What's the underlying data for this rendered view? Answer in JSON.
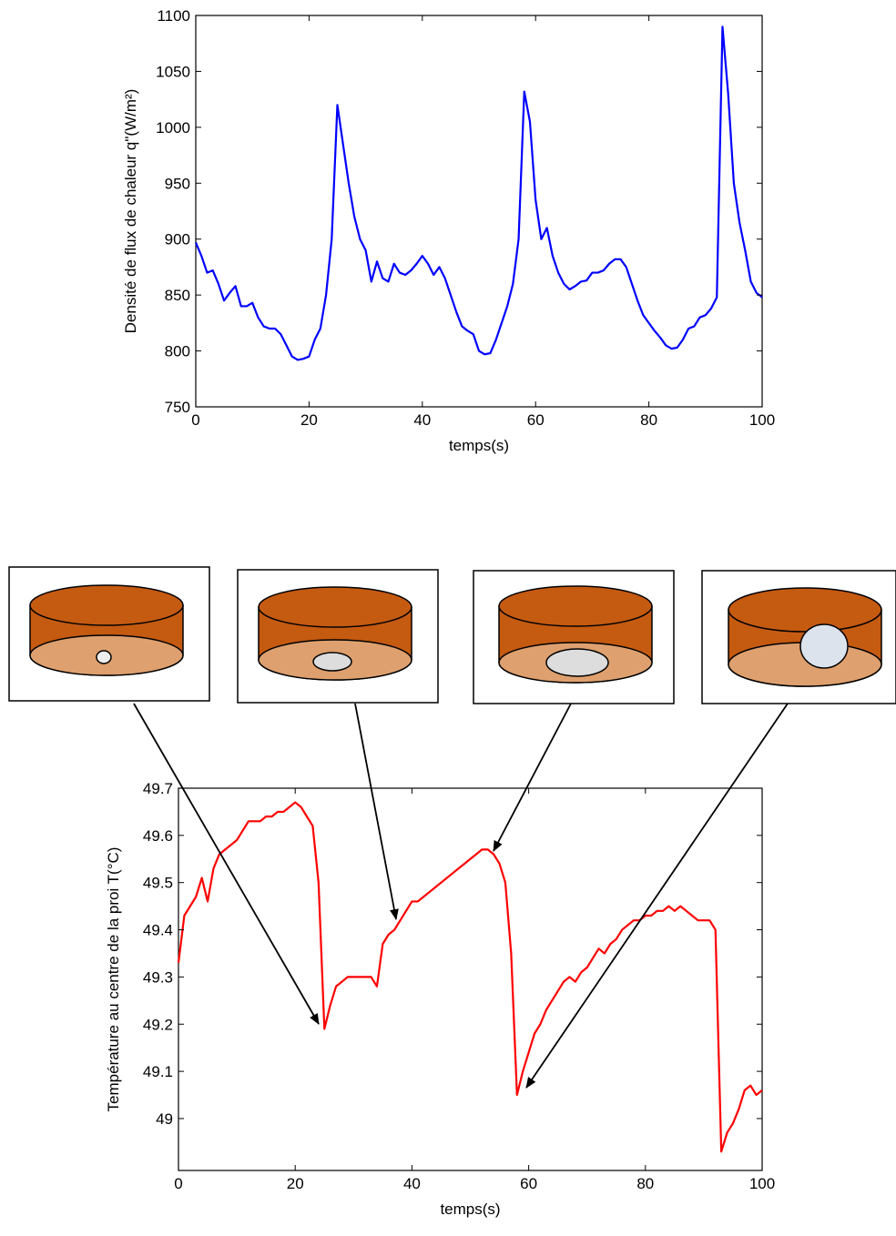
{
  "chart_data": [
    {
      "type": "line",
      "xlabel": "temps(s)",
      "ylabel": "Densité de flux de chaleur q\"(W/m²)",
      "color": "#0000ff",
      "xlim": [
        0,
        100
      ],
      "xticks": [
        0,
        20,
        40,
        60,
        80,
        100
      ],
      "ylim": [
        750,
        1100
      ],
      "yticks": [
        750,
        800,
        850,
        900,
        950,
        1000,
        1050,
        1100
      ],
      "x": [
        0,
        1,
        2,
        3,
        4,
        5,
        6,
        7,
        8,
        9,
        10,
        11,
        12,
        13,
        14,
        15,
        16,
        17,
        18,
        19,
        20,
        21,
        22,
        23,
        24,
        25,
        26,
        27,
        28,
        29,
        30,
        31,
        32,
        33,
        34,
        35,
        36,
        37,
        38,
        39,
        40,
        41,
        42,
        43,
        44,
        45,
        46,
        47,
        48,
        49,
        50,
        51,
        52,
        53,
        54,
        55,
        56,
        57,
        58,
        59,
        60,
        61,
        62,
        63,
        64,
        65,
        66,
        67,
        68,
        69,
        70,
        71,
        72,
        73,
        74,
        75,
        76,
        77,
        78,
        79,
        80,
        81,
        82,
        83,
        84,
        85,
        86,
        87,
        88,
        89,
        90,
        91,
        92,
        93,
        94,
        95,
        96,
        97,
        98,
        99,
        100
      ],
      "values": [
        897,
        885,
        870,
        872,
        860,
        845,
        852,
        858,
        840,
        840,
        843,
        830,
        822,
        820,
        820,
        815,
        805,
        795,
        792,
        793,
        795,
        810,
        820,
        850,
        900,
        1020,
        985,
        950,
        920,
        900,
        890,
        862,
        880,
        865,
        862,
        878,
        870,
        868,
        872,
        878,
        885,
        878,
        868,
        875,
        865,
        850,
        835,
        822,
        818,
        815,
        800,
        797,
        798,
        810,
        825,
        840,
        860,
        900,
        1032,
        1005,
        935,
        900,
        910,
        885,
        870,
        860,
        855,
        858,
        862,
        863,
        870,
        870,
        872,
        878,
        882,
        882,
        875,
        860,
        845,
        832,
        825,
        818,
        812,
        805,
        802,
        803,
        810,
        820,
        822,
        830,
        832,
        838,
        848,
        1090,
        1030,
        950,
        915,
        890,
        862,
        852,
        848
      ]
    },
    {
      "type": "line",
      "xlabel": "temps(s)",
      "ylabel": "Température au centre de la proi T(°C)",
      "color": "#ff0000",
      "xlim": [
        0,
        100
      ],
      "xticks": [
        0,
        20,
        40,
        60,
        80,
        100
      ],
      "ylim": [
        48.89,
        49.7
      ],
      "yticks": [
        49,
        49.1,
        49.2,
        49.3,
        49.4,
        49.5,
        49.6,
        49.7
      ],
      "x": [
        0,
        1,
        2,
        3,
        4,
        5,
        6,
        7,
        8,
        9,
        10,
        11,
        12,
        13,
        14,
        15,
        16,
        17,
        18,
        19,
        20,
        21,
        22,
        23,
        24,
        25,
        26,
        27,
        28,
        29,
        30,
        31,
        32,
        33,
        34,
        35,
        36,
        37,
        38,
        39,
        40,
        41,
        42,
        43,
        44,
        45,
        46,
        47,
        48,
        49,
        50,
        51,
        52,
        53,
        54,
        55,
        56,
        57,
        58,
        59,
        60,
        61,
        62,
        63,
        64,
        65,
        66,
        67,
        68,
        69,
        70,
        71,
        72,
        73,
        74,
        75,
        76,
        77,
        78,
        79,
        80,
        81,
        82,
        83,
        84,
        85,
        86,
        87,
        88,
        89,
        90,
        91,
        92,
        93,
        94,
        95,
        96,
        97,
        98,
        99,
        100
      ],
      "values": [
        49.33,
        49.43,
        49.45,
        49.47,
        49.51,
        49.46,
        49.53,
        49.56,
        49.57,
        49.58,
        49.59,
        49.61,
        49.63,
        49.63,
        49.63,
        49.64,
        49.64,
        49.65,
        49.65,
        49.66,
        49.67,
        49.66,
        49.64,
        49.62,
        49.5,
        49.19,
        49.24,
        49.28,
        49.29,
        49.3,
        49.3,
        49.3,
        49.3,
        49.3,
        49.28,
        49.37,
        49.39,
        49.4,
        49.42,
        49.44,
        49.46,
        49.46,
        49.47,
        49.48,
        49.49,
        49.5,
        49.51,
        49.52,
        49.53,
        49.54,
        49.55,
        49.56,
        49.57,
        49.57,
        49.56,
        49.54,
        49.5,
        49.35,
        49.05,
        49.1,
        49.14,
        49.18,
        49.2,
        49.23,
        49.25,
        49.27,
        49.29,
        49.3,
        49.29,
        49.31,
        49.32,
        49.34,
        49.36,
        49.35,
        49.37,
        49.38,
        49.4,
        49.41,
        49.42,
        49.42,
        49.43,
        49.43,
        49.44,
        49.44,
        49.45,
        49.44,
        49.45,
        49.44,
        49.43,
        49.42,
        49.42,
        49.42,
        49.4,
        48.93,
        48.97,
        48.99,
        49.02,
        49.06,
        49.07,
        49.05,
        49.06
      ]
    }
  ]
}
